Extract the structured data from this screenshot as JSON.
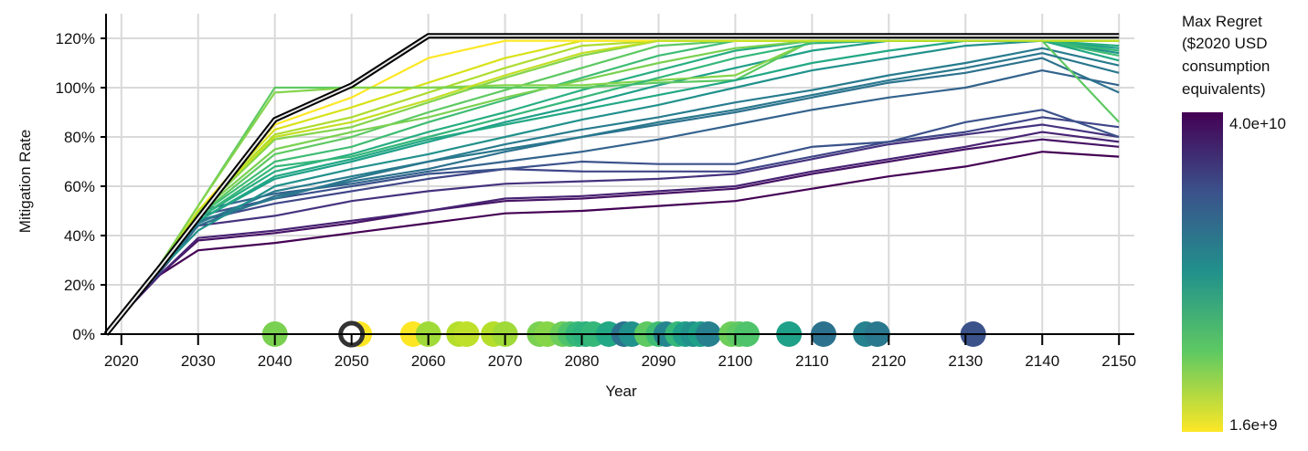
{
  "chart_data": {
    "type": "line",
    "xlabel": "Year",
    "ylabel": "Mitigation Rate",
    "xlim": [
      2018,
      2152
    ],
    "ylim": [
      0,
      1.2
    ],
    "x_ticks": [
      2020,
      2030,
      2040,
      2050,
      2060,
      2070,
      2080,
      2090,
      2100,
      2110,
      2120,
      2130,
      2140,
      2150
    ],
    "y_ticks": [
      0,
      0.2,
      0.4,
      0.6,
      0.8,
      1.0,
      1.2
    ],
    "y_tick_labels": [
      "0%",
      "20%",
      "40%",
      "60%",
      "80%",
      "100%",
      "120%"
    ],
    "grid": true,
    "legend": {
      "title": [
        "Max Regret",
        "($2020 USD",
        "consumption",
        "equivalents)"
      ],
      "max_label": "4.0e+10",
      "min_label": "1.6e+9",
      "colors": [
        "#440154",
        "#3b528b",
        "#21918c",
        "#5ec962",
        "#fde725"
      ],
      "placement": "right"
    },
    "highlight_series": {
      "x": [
        2018,
        2025,
        2040,
        2050,
        2060,
        2070,
        2080,
        2090,
        2100,
        2110,
        2120,
        2130,
        2140,
        2150
      ],
      "values": [
        0.0,
        0.27,
        0.87,
        1.01,
        1.21,
        1.21,
        1.21,
        1.21,
        1.21,
        1.21,
        1.21,
        1.21,
        1.21,
        1.21
      ],
      "color": "#000000"
    },
    "highlight_marker": {
      "x": 2050,
      "y": 0,
      "color": "#333333"
    },
    "series_x": [
      2018,
      2025,
      2030,
      2040,
      2050,
      2060,
      2070,
      2080,
      2090,
      2100,
      2110,
      2120,
      2130,
      2140,
      2150
    ],
    "series": [
      {
        "color": "#440154",
        "values": [
          0.01,
          0.24,
          0.34,
          0.37,
          0.41,
          0.45,
          0.49,
          0.5,
          0.52,
          0.54,
          0.59,
          0.64,
          0.68,
          0.74,
          0.72
        ]
      },
      {
        "color": "#471365",
        "values": [
          0.01,
          0.24,
          0.38,
          0.41,
          0.45,
          0.5,
          0.54,
          0.55,
          0.57,
          0.59,
          0.65,
          0.7,
          0.75,
          0.79,
          0.76
        ]
      },
      {
        "color": "#482374",
        "values": [
          0.01,
          0.24,
          0.39,
          0.42,
          0.46,
          0.5,
          0.55,
          0.56,
          0.58,
          0.6,
          0.66,
          0.71,
          0.76,
          0.82,
          0.78
        ]
      },
      {
        "color": "#46327e",
        "values": [
          0.01,
          0.25,
          0.44,
          0.48,
          0.54,
          0.58,
          0.61,
          0.62,
          0.63,
          0.65,
          0.71,
          0.77,
          0.81,
          0.85,
          0.8
        ]
      },
      {
        "color": "#404688",
        "values": [
          0.01,
          0.25,
          0.46,
          0.53,
          0.58,
          0.63,
          0.67,
          0.66,
          0.66,
          0.66,
          0.72,
          0.78,
          0.82,
          0.88,
          0.84
        ]
      },
      {
        "color": "#3b528b",
        "values": [
          0.01,
          0.25,
          0.48,
          0.55,
          0.6,
          0.65,
          0.67,
          0.7,
          0.69,
          0.69,
          0.76,
          0.78,
          0.86,
          0.91,
          0.8
        ]
      },
      {
        "color": "#33638d",
        "values": [
          0.01,
          0.26,
          0.5,
          0.57,
          0.61,
          0.66,
          0.7,
          0.74,
          0.79,
          0.85,
          0.91,
          0.96,
          1.0,
          1.07,
          1.01
        ]
      },
      {
        "color": "#2c728e",
        "values": [
          0.01,
          0.26,
          0.44,
          0.56,
          0.62,
          0.67,
          0.74,
          0.8,
          0.85,
          0.9,
          0.96,
          1.02,
          1.06,
          1.12,
          0.98
        ]
      },
      {
        "color": "#287c8e",
        "values": [
          0.01,
          0.26,
          0.45,
          0.58,
          0.64,
          0.7,
          0.77,
          0.83,
          0.88,
          0.94,
          0.99,
          1.05,
          1.1,
          1.16,
          1.09
        ]
      },
      {
        "color": "#21918c",
        "values": [
          0.01,
          0.26,
          0.42,
          0.6,
          0.67,
          0.73,
          0.8,
          0.87,
          0.93,
          1.0,
          1.07,
          1.12,
          1.17,
          1.19,
          1.14
        ]
      },
      {
        "color": "#1fa088",
        "values": [
          0.01,
          0.26,
          0.46,
          0.63,
          0.7,
          0.78,
          0.86,
          0.93,
          1.01,
          1.08,
          1.15,
          1.19,
          1.19,
          1.19,
          1.16
        ]
      },
      {
        "color": "#28ae80",
        "values": [
          0.01,
          0.26,
          0.47,
          0.66,
          0.73,
          0.82,
          0.9,
          0.99,
          1.07,
          1.15,
          1.19,
          1.19,
          1.19,
          1.19,
          1.17
        ]
      },
      {
        "color": "#3fbc73",
        "values": [
          0.01,
          0.27,
          0.48,
          0.7,
          0.76,
          0.86,
          0.95,
          1.04,
          1.13,
          1.19,
          1.19,
          1.19,
          1.19,
          1.19,
          1.13
        ]
      },
      {
        "color": "#5ec962",
        "values": [
          0.01,
          0.27,
          0.48,
          0.73,
          0.8,
          0.9,
          0.99,
          1.08,
          1.17,
          1.19,
          1.19,
          1.19,
          1.19,
          1.19,
          0.86
        ]
      },
      {
        "color": "#84d44b",
        "values": [
          0.01,
          0.27,
          0.49,
          0.79,
          0.84,
          0.94,
          1.04,
          1.13,
          1.19,
          1.19,
          1.19,
          1.19,
          1.19,
          1.19,
          1.19
        ]
      },
      {
        "color": "#addc30",
        "values": [
          0.01,
          0.27,
          0.5,
          0.81,
          0.88,
          0.98,
          1.08,
          1.17,
          1.19,
          1.19,
          1.19,
          1.19,
          1.19,
          1.19,
          1.19
        ]
      },
      {
        "color": "#d8e219",
        "values": [
          0.01,
          0.27,
          0.5,
          0.83,
          0.92,
          1.02,
          1.12,
          1.19,
          1.19,
          1.19,
          1.19,
          1.19,
          1.19,
          1.19,
          1.19
        ]
      },
      {
        "color": "#fde725",
        "values": [
          0.01,
          0.27,
          0.5,
          0.85,
          0.96,
          1.12,
          1.19,
          1.19,
          1.19,
          1.19,
          1.19,
          1.19,
          1.19,
          1.19,
          1.19
        ]
      },
      {
        "color": "#5ec962",
        "values": [
          0.01,
          0.28,
          0.52,
          1.0,
          1.0,
          1.0,
          1.0,
          1.0,
          1.02,
          1.03,
          1.19,
          1.19,
          1.19,
          1.19,
          1.19
        ]
      },
      {
        "color": "#84d44b",
        "values": [
          0.01,
          0.28,
          0.52,
          0.98,
          1.0,
          1.0,
          1.01,
          1.01,
          1.03,
          1.05,
          1.19,
          1.19,
          1.19,
          1.19,
          1.19
        ]
      },
      {
        "color": "#35b779",
        "values": [
          0.01,
          0.26,
          0.47,
          0.68,
          0.72,
          0.8,
          0.88,
          0.96,
          1.04,
          1.12,
          1.18,
          1.19,
          1.19,
          1.19,
          1.15
        ]
      },
      {
        "color": "#2a788e",
        "values": [
          0.01,
          0.26,
          0.46,
          0.55,
          0.63,
          0.7,
          0.75,
          0.8,
          0.86,
          0.91,
          0.97,
          1.03,
          1.08,
          1.14,
          1.06
        ]
      },
      {
        "color": "#7ad151",
        "values": [
          0.01,
          0.27,
          0.49,
          0.75,
          0.82,
          0.88,
          0.96,
          1.03,
          1.1,
          1.16,
          1.19,
          1.19,
          1.19,
          1.19,
          1.19
        ]
      },
      {
        "color": "#22a884",
        "values": [
          0.01,
          0.26,
          0.46,
          0.64,
          0.71,
          0.79,
          0.85,
          0.91,
          0.97,
          1.03,
          1.1,
          1.15,
          1.19,
          1.19,
          1.11
        ]
      },
      {
        "color": "#c2df23",
        "values": [
          0.01,
          0.27,
          0.5,
          0.8,
          0.86,
          0.95,
          1.05,
          1.14,
          1.19,
          1.19,
          1.19,
          1.19,
          1.19,
          1.19,
          1.19
        ]
      }
    ],
    "points": [
      {
        "x": 2040.0,
        "color": "#7ad151"
      },
      {
        "x": 2051.0,
        "color": "#fde725"
      },
      {
        "x": 2058.0,
        "color": "#fde725"
      },
      {
        "x": 2060.0,
        "color": "#a0da39"
      },
      {
        "x": 2064.0,
        "color": "#b5de2b"
      },
      {
        "x": 2065.0,
        "color": "#bfe02b"
      },
      {
        "x": 2068.5,
        "color": "#b5de2b"
      },
      {
        "x": 2070.0,
        "color": "#a0da39"
      },
      {
        "x": 2074.5,
        "color": "#7ad151"
      },
      {
        "x": 2075.5,
        "color": "#86d549"
      },
      {
        "x": 2077.5,
        "color": "#6ccd5a"
      },
      {
        "x": 2078.5,
        "color": "#4ec36b"
      },
      {
        "x": 2079.5,
        "color": "#35b779"
      },
      {
        "x": 2080.5,
        "color": "#2db27d"
      },
      {
        "x": 2081.5,
        "color": "#35b779"
      },
      {
        "x": 2083.5,
        "color": "#22a884"
      },
      {
        "x": 2085.5,
        "color": "#2c728e"
      },
      {
        "x": 2086.5,
        "color": "#21918c"
      },
      {
        "x": 2088.5,
        "color": "#5ec962"
      },
      {
        "x": 2090.0,
        "color": "#3fbc73"
      },
      {
        "x": 2091.0,
        "color": "#25858e"
      },
      {
        "x": 2092.5,
        "color": "#35b779"
      },
      {
        "x": 2093.5,
        "color": "#1f9e89"
      },
      {
        "x": 2094.5,
        "color": "#21918c"
      },
      {
        "x": 2095.5,
        "color": "#1fa088"
      },
      {
        "x": 2096.5,
        "color": "#27808e"
      },
      {
        "x": 2099.5,
        "color": "#6ccd5a"
      },
      {
        "x": 2100.5,
        "color": "#5ec962"
      },
      {
        "x": 2101.5,
        "color": "#4ec36b"
      },
      {
        "x": 2107.0,
        "color": "#1fa088"
      },
      {
        "x": 2111.5,
        "color": "#2c728e"
      },
      {
        "x": 2117.0,
        "color": "#26828e"
      },
      {
        "x": 2118.5,
        "color": "#2a788e"
      },
      {
        "x": 2131.0,
        "color": "#3b528b"
      }
    ]
  }
}
